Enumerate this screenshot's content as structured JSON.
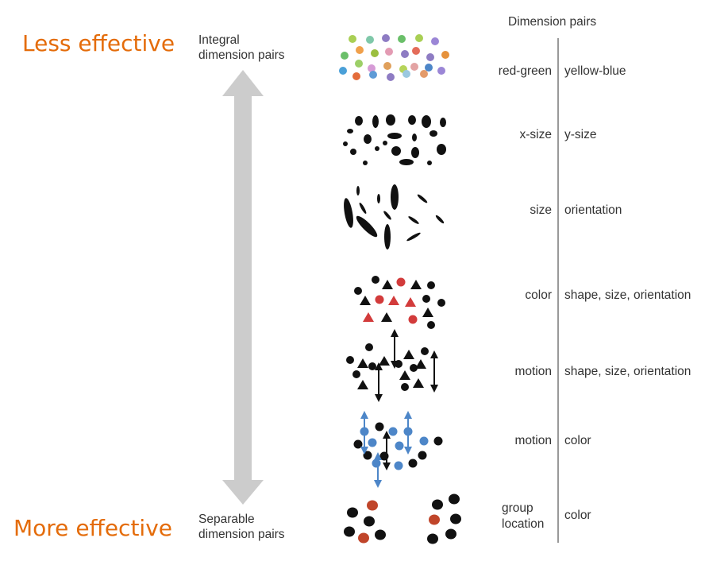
{
  "less_effective": "Less effective",
  "more_effective": "More effective",
  "integral_label": "Integral\ndimension pairs",
  "separable_label": "Separable\ndimension pairs",
  "dimension_pairs_title": "Dimension pairs",
  "rows": [
    {
      "left": "red-green",
      "right": "yellow-blue"
    },
    {
      "left": "x-size",
      "right": "y-size"
    },
    {
      "left": "size",
      "right": "orientation"
    },
    {
      "left": "color",
      "right": "shape, size, orientation"
    },
    {
      "left": "motion",
      "right": "shape, size, orientation"
    },
    {
      "left": "motion",
      "right": "color"
    },
    {
      "left": "group\nlocation",
      "right": "color"
    }
  ],
  "colors": {
    "accent_orange": "#e46c0a",
    "arrow_gray": "#cccccc",
    "divider_gray": "#999999",
    "red": "#d23b3b",
    "blue": "#4d86c8",
    "brown_red": "#c0452a",
    "black": "#111111"
  }
}
